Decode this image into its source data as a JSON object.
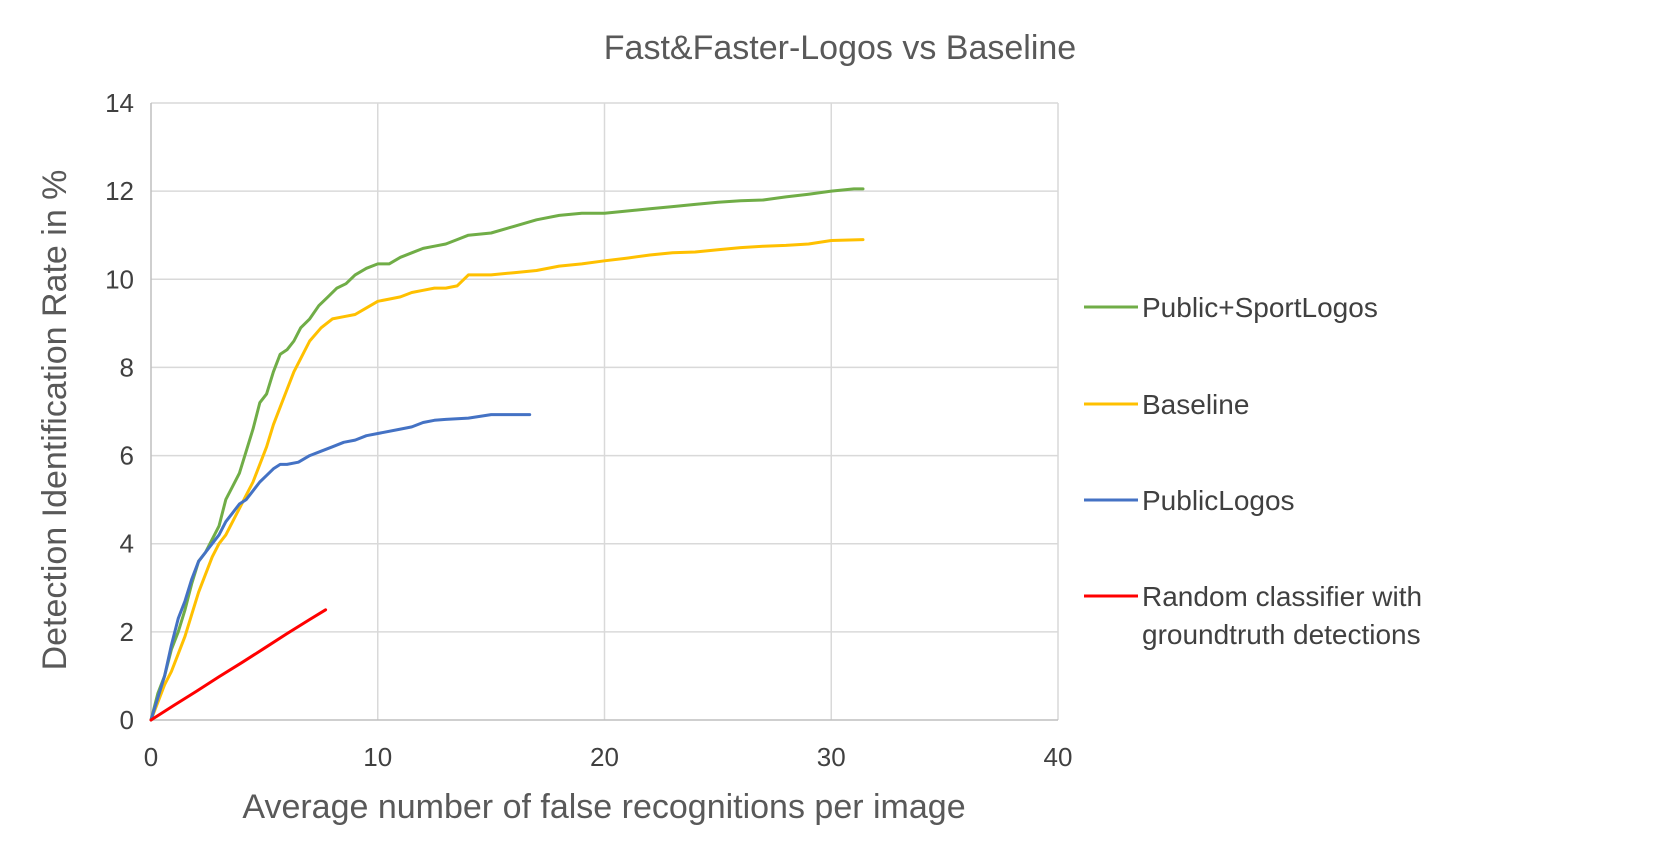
{
  "chart_data": {
    "type": "line",
    "title": "Fast&Faster-Logos vs Baseline",
    "xlabel": "Average number of false recognitions per image",
    "ylabel": "Detection Identification Rate in %",
    "xlim": [
      0,
      40
    ],
    "ylim": [
      0,
      14
    ],
    "xticks": [
      "0",
      "10",
      "20",
      "30",
      "40"
    ],
    "yticks": [
      "0",
      "2",
      "4",
      "6",
      "8",
      "10",
      "12",
      "14"
    ],
    "grid": true,
    "legend_position": "right",
    "series": [
      {
        "name": "Public+SportLogos",
        "color": "#70AD47",
        "points": [
          [
            0,
            0
          ],
          [
            0.3,
            0.6
          ],
          [
            0.6,
            1.0
          ],
          [
            0.9,
            1.6
          ],
          [
            1.2,
            2.0
          ],
          [
            1.5,
            2.5
          ],
          [
            1.8,
            3.1
          ],
          [
            2.1,
            3.6
          ],
          [
            2.4,
            3.8
          ],
          [
            2.7,
            4.1
          ],
          [
            3.0,
            4.4
          ],
          [
            3.3,
            5.0
          ],
          [
            3.6,
            5.3
          ],
          [
            3.9,
            5.6
          ],
          [
            4.2,
            6.1
          ],
          [
            4.5,
            6.6
          ],
          [
            4.8,
            7.2
          ],
          [
            5.1,
            7.4
          ],
          [
            5.4,
            7.9
          ],
          [
            5.7,
            8.3
          ],
          [
            6.0,
            8.4
          ],
          [
            6.3,
            8.6
          ],
          [
            6.6,
            8.9
          ],
          [
            7.0,
            9.1
          ],
          [
            7.4,
            9.4
          ],
          [
            7.8,
            9.6
          ],
          [
            8.2,
            9.8
          ],
          [
            8.6,
            9.9
          ],
          [
            9.0,
            10.1
          ],
          [
            9.5,
            10.25
          ],
          [
            10.0,
            10.35
          ],
          [
            10.5,
            10.35
          ],
          [
            11.0,
            10.5
          ],
          [
            11.5,
            10.6
          ],
          [
            12.0,
            10.7
          ],
          [
            12.5,
            10.75
          ],
          [
            13.0,
            10.8
          ],
          [
            13.5,
            10.9
          ],
          [
            14.0,
            11.0
          ],
          [
            15.0,
            11.05
          ],
          [
            16.0,
            11.2
          ],
          [
            17.0,
            11.35
          ],
          [
            18.0,
            11.45
          ],
          [
            19.0,
            11.5
          ],
          [
            20.0,
            11.5
          ],
          [
            21.0,
            11.55
          ],
          [
            22.0,
            11.6
          ],
          [
            23.0,
            11.65
          ],
          [
            24.0,
            11.7
          ],
          [
            25.0,
            11.75
          ],
          [
            26.0,
            11.78
          ],
          [
            27.0,
            11.8
          ],
          [
            28.0,
            11.87
          ],
          [
            29.0,
            11.93
          ],
          [
            30.0,
            12.0
          ],
          [
            31.0,
            12.05
          ],
          [
            31.4,
            12.05
          ]
        ]
      },
      {
        "name": "Baseline",
        "color": "#FFC000",
        "points": [
          [
            0,
            0
          ],
          [
            0.3,
            0.4
          ],
          [
            0.6,
            0.8
          ],
          [
            0.9,
            1.1
          ],
          [
            1.2,
            1.5
          ],
          [
            1.5,
            1.9
          ],
          [
            1.8,
            2.4
          ],
          [
            2.1,
            2.9
          ],
          [
            2.4,
            3.3
          ],
          [
            2.7,
            3.7
          ],
          [
            3.0,
            4.0
          ],
          [
            3.3,
            4.2
          ],
          [
            3.6,
            4.5
          ],
          [
            3.9,
            4.8
          ],
          [
            4.2,
            5.1
          ],
          [
            4.5,
            5.4
          ],
          [
            4.8,
            5.8
          ],
          [
            5.1,
            6.2
          ],
          [
            5.4,
            6.7
          ],
          [
            5.7,
            7.1
          ],
          [
            6.0,
            7.5
          ],
          [
            6.3,
            7.9
          ],
          [
            6.6,
            8.2
          ],
          [
            7.0,
            8.6
          ],
          [
            7.5,
            8.9
          ],
          [
            8.0,
            9.1
          ],
          [
            8.5,
            9.15
          ],
          [
            9.0,
            9.2
          ],
          [
            9.5,
            9.35
          ],
          [
            10.0,
            9.5
          ],
          [
            10.5,
            9.55
          ],
          [
            11.0,
            9.6
          ],
          [
            11.5,
            9.7
          ],
          [
            12.0,
            9.75
          ],
          [
            12.5,
            9.8
          ],
          [
            13.0,
            9.8
          ],
          [
            13.5,
            9.85
          ],
          [
            14.0,
            10.1
          ],
          [
            15.0,
            10.1
          ],
          [
            16.0,
            10.15
          ],
          [
            17.0,
            10.2
          ],
          [
            18.0,
            10.3
          ],
          [
            19.0,
            10.35
          ],
          [
            20.0,
            10.42
          ],
          [
            21.0,
            10.48
          ],
          [
            22.0,
            10.55
          ],
          [
            23.0,
            10.6
          ],
          [
            24.0,
            10.62
          ],
          [
            25.0,
            10.67
          ],
          [
            26.0,
            10.72
          ],
          [
            27.0,
            10.75
          ],
          [
            28.0,
            10.77
          ],
          [
            29.0,
            10.8
          ],
          [
            30.0,
            10.88
          ],
          [
            31.4,
            10.9
          ]
        ]
      },
      {
        "name": "PublicLogos",
        "color": "#4472C4",
        "points": [
          [
            0,
            0
          ],
          [
            0.3,
            0.5
          ],
          [
            0.6,
            1.0
          ],
          [
            0.9,
            1.7
          ],
          [
            1.2,
            2.3
          ],
          [
            1.5,
            2.7
          ],
          [
            1.8,
            3.2
          ],
          [
            2.1,
            3.6
          ],
          [
            2.4,
            3.8
          ],
          [
            2.7,
            4.0
          ],
          [
            3.0,
            4.2
          ],
          [
            3.3,
            4.5
          ],
          [
            3.6,
            4.7
          ],
          [
            3.9,
            4.9
          ],
          [
            4.2,
            5.0
          ],
          [
            4.5,
            5.2
          ],
          [
            4.8,
            5.4
          ],
          [
            5.1,
            5.55
          ],
          [
            5.4,
            5.7
          ],
          [
            5.7,
            5.8
          ],
          [
            6.0,
            5.8
          ],
          [
            6.5,
            5.85
          ],
          [
            7.0,
            6.0
          ],
          [
            7.5,
            6.1
          ],
          [
            8.0,
            6.2
          ],
          [
            8.5,
            6.3
          ],
          [
            9.0,
            6.35
          ],
          [
            9.5,
            6.45
          ],
          [
            10.0,
            6.5
          ],
          [
            11.0,
            6.6
          ],
          [
            11.5,
            6.65
          ],
          [
            12.0,
            6.75
          ],
          [
            12.5,
            6.8
          ],
          [
            13.0,
            6.82
          ],
          [
            14.0,
            6.85
          ],
          [
            15.0,
            6.93
          ],
          [
            16.0,
            6.93
          ],
          [
            16.7,
            6.93
          ]
        ]
      },
      {
        "name": "Random classifier with groundtruth detections",
        "color": "#FF0000",
        "points": [
          [
            0,
            0
          ],
          [
            1.0,
            0.33
          ],
          [
            2.0,
            0.65
          ],
          [
            3.0,
            0.98
          ],
          [
            4.0,
            1.3
          ],
          [
            5.0,
            1.63
          ],
          [
            6.0,
            1.96
          ],
          [
            7.0,
            2.28
          ],
          [
            7.7,
            2.5
          ]
        ]
      }
    ]
  }
}
